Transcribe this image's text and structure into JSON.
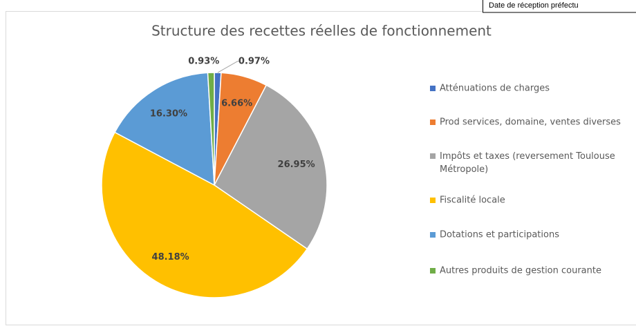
{
  "header_note": "Date de réception préfectu",
  "chart_data": {
    "type": "pie",
    "title": "Structure des recettes réelles de fonctionnement",
    "categories": [
      "Atténuations de charges",
      "Prod services, domaine, ventes diverses",
      "Impôts et taxes (reversement Toulouse Métropole)",
      "Fiscalité locale",
      "Dotations et participations",
      "Autres produits de gestion courante"
    ],
    "values": [
      0.97,
      6.66,
      26.95,
      48.18,
      16.3,
      0.93
    ],
    "value_labels": [
      "0.97%",
      "6.66%",
      "26.95%",
      "48.18%",
      "16.30%",
      "0.93%"
    ],
    "colors": [
      "#4472c4",
      "#ed7d31",
      "#a5a5a5",
      "#ffc000",
      "#5b9bd5",
      "#70ad47"
    ],
    "legend": "right"
  }
}
